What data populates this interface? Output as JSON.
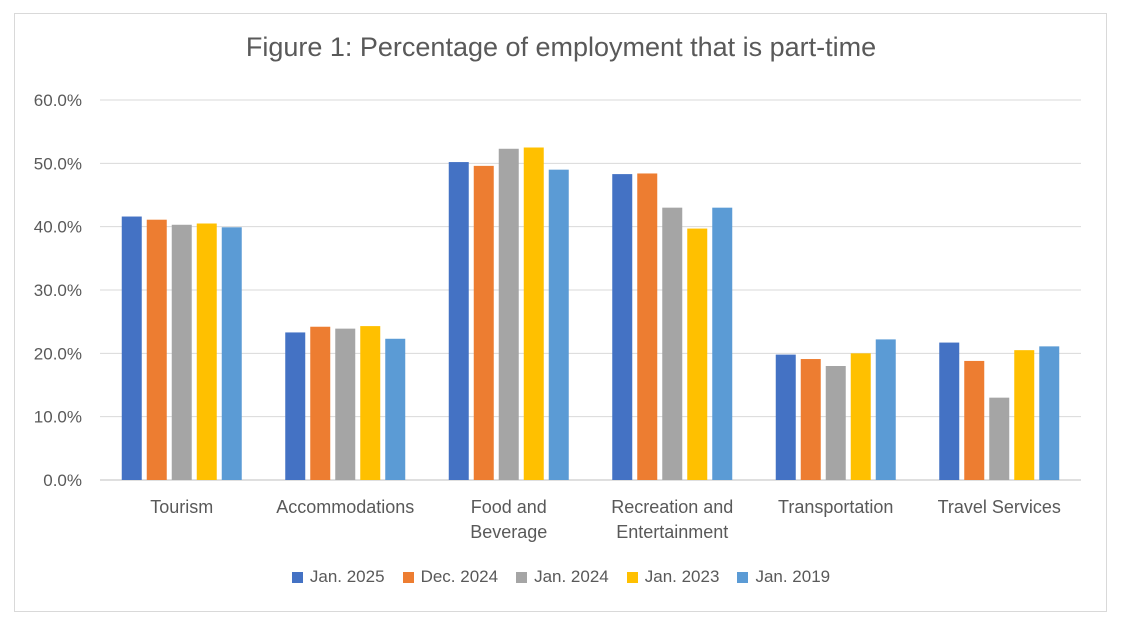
{
  "chart_data": {
    "type": "bar",
    "title": "Figure 1: Percentage of employment that is part-time",
    "xlabel": "",
    "ylabel": "",
    "ylim": [
      0,
      60
    ],
    "yticks": [
      "0.0%",
      "10.0%",
      "20.0%",
      "30.0%",
      "40.0%",
      "50.0%",
      "60.0%"
    ],
    "categories": [
      [
        "Tourism"
      ],
      [
        "Accommodations"
      ],
      [
        "Food and",
        "Beverage"
      ],
      [
        "Recreation and",
        "Entertainment"
      ],
      [
        "Transportation"
      ],
      [
        "Travel Services"
      ]
    ],
    "series": [
      {
        "name": "Jan. 2025",
        "color": "#4472c4",
        "values": [
          41.6,
          23.3,
          50.2,
          48.3,
          19.8,
          21.7
        ]
      },
      {
        "name": "Dec. 2024",
        "color": "#ed7d31",
        "values": [
          41.1,
          24.2,
          49.6,
          48.4,
          19.1,
          18.8
        ]
      },
      {
        "name": "Jan. 2024",
        "color": "#a5a5a5",
        "values": [
          40.3,
          23.9,
          52.3,
          43.0,
          18.0,
          13.0
        ]
      },
      {
        "name": "Jan. 2023",
        "color": "#ffc000",
        "values": [
          40.5,
          24.3,
          52.5,
          39.7,
          20.0,
          20.5
        ]
      },
      {
        "name": "Jan. 2019",
        "color": "#5b9bd5",
        "values": [
          39.9,
          22.3,
          49.0,
          43.0,
          22.2,
          21.1
        ]
      }
    ],
    "grid": true,
    "legend_position": "bottom"
  }
}
